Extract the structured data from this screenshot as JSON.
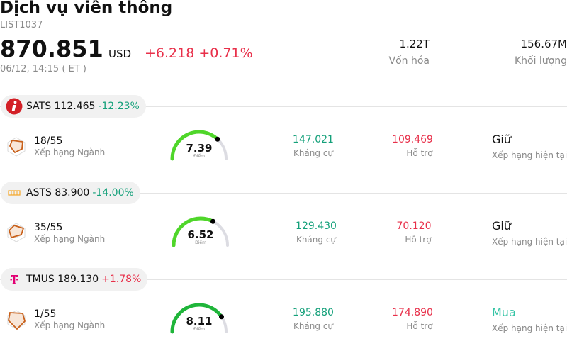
{
  "header": {
    "title": "Dịch vụ viễn thông",
    "code": "LIST1037",
    "price": "870.851",
    "currency": "USD",
    "change": "+6.218 +0.71%",
    "time": "06/12, 14:15  ( ET )",
    "market_cap_value": "1.22T",
    "market_cap_label": "Vốn hóa",
    "volume_value": "156.67M",
    "volume_label": "Khối lượng"
  },
  "colors": {
    "positive": "#e8304a",
    "negative": "#14a07a",
    "gauge_track": "#dcdce2",
    "buy": "#35c4a5"
  },
  "stocks": [
    {
      "ticker_price": "SATS 112.465",
      "pct": "-12.23%",
      "logo_icon": "echostar-i-icon",
      "rank": "18/55",
      "rank_label": "Xếp hạng Ngành",
      "score": "7.39",
      "score_fraction": 0.739,
      "score_label": "Điểm",
      "resistance": "147.021",
      "resistance_label": "Kháng cự",
      "support": "109.469",
      "support_label": "Hỗ trợ",
      "rating": "Giữ",
      "rating_label": "Xếp hạng hiện tại"
    },
    {
      "ticker_price": "ASTS 83.900",
      "pct": "-14.00%",
      "logo_icon": "ast-spacemobile-icon",
      "rank": "35/55",
      "rank_label": "Xếp hạng Ngành",
      "score": "6.52",
      "score_fraction": 0.652,
      "score_label": "Điểm",
      "resistance": "129.430",
      "resistance_label": "Kháng cự",
      "support": "70.120",
      "support_label": "Hỗ trợ",
      "rating": "Giữ",
      "rating_label": "Xếp hạng hiện tại"
    },
    {
      "ticker_price": "TMUS 189.130",
      "pct": "+1.78%",
      "logo_icon": "tmobile-t-icon",
      "rank": "1/55",
      "rank_label": "Xếp hạng Ngành",
      "score": "8.11",
      "score_fraction": 0.811,
      "score_label": "Điểm",
      "resistance": "195.880",
      "resistance_label": "Kháng cự",
      "support": "174.890",
      "support_label": "Hỗ trợ",
      "rating": "Mua",
      "rating_label": "Xếp hạng hiện tại"
    }
  ]
}
